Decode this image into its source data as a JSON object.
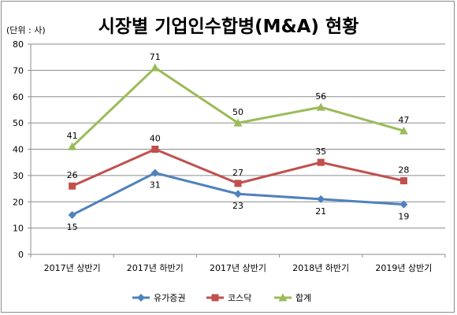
{
  "chart_data": {
    "type": "line",
    "title": "시장별 기업인수합병(M&A) 현황",
    "unit_label": "(단위 : 사)",
    "categories": [
      "2017년 상반기",
      "2017년 하반기",
      "2017년 상반기",
      "2018년 하반기",
      "2019년 상반기"
    ],
    "ylim": [
      0,
      80
    ],
    "yticks": [
      0,
      10,
      20,
      30,
      40,
      50,
      60,
      70,
      80
    ],
    "grid": true,
    "legend_position": "bottom",
    "series": [
      {
        "name": "유가증권",
        "values": [
          15,
          31,
          23,
          21,
          19
        ],
        "color": "#4f81bd",
        "marker": "diamond",
        "label_pos": "below"
      },
      {
        "name": "코스닥",
        "values": [
          26,
          40,
          27,
          35,
          28
        ],
        "color": "#c0504d",
        "marker": "square",
        "label_pos": "above"
      },
      {
        "name": "합계",
        "values": [
          41,
          71,
          50,
          56,
          47
        ],
        "color": "#9bbb59",
        "marker": "triangle",
        "label_pos": "above"
      }
    ]
  }
}
